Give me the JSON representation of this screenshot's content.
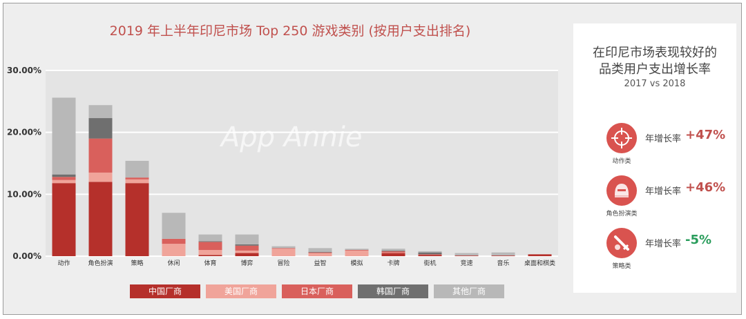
{
  "title": "2019 年上半年印尼市场 Top 250 游戏类别 (按用户支出排名)",
  "watermark": "App Annie",
  "colors": {
    "china": "#b5302b",
    "usa": "#f0a49a",
    "japan": "#d9605c",
    "korea": "#6f6f6f",
    "other": "#b8b8b8",
    "positive": "#c0504d",
    "negative": "#2a9d5c"
  },
  "chart_data": {
    "type": "bar",
    "stacked": true,
    "title": "2019 年上半年印尼市场 Top 250 游戏类别 (按用户支出排名)",
    "categories": [
      "动作",
      "角色扮演",
      "策略",
      "休闲",
      "体育",
      "博弈",
      "冒险",
      "益智",
      "模拟",
      "卡牌",
      "街机",
      "竞速",
      "音乐",
      "桌面和棋类"
    ],
    "y_ticks": [
      "0.00%",
      "10.00%",
      "20.00%",
      "30.00%"
    ],
    "ylim": [
      0,
      30
    ],
    "grid": true,
    "legend_position": "bottom",
    "series": [
      {
        "name": "中国厂商",
        "color_key": "china",
        "values": [
          11.8,
          12.0,
          11.8,
          0.0,
          0.2,
          0.5,
          0.0,
          0.0,
          0.0,
          0.5,
          0.2,
          0.1,
          0.1,
          0.3
        ]
      },
      {
        "name": "美国厂商",
        "color_key": "usa",
        "values": [
          0.5,
          1.5,
          0.6,
          2.0,
          0.8,
          0.4,
          1.2,
          0.5,
          0.9,
          0.1,
          0.0,
          0.0,
          0.0,
          0.0
        ]
      },
      {
        "name": "日本厂商",
        "color_key": "japan",
        "values": [
          0.5,
          5.5,
          0.3,
          0.8,
          1.3,
          0.8,
          0.1,
          0.1,
          0.1,
          0.2,
          0.1,
          0.0,
          0.0,
          0.0
        ]
      },
      {
        "name": "韩国厂商",
        "color_key": "korea",
        "values": [
          0.4,
          3.3,
          0.0,
          0.0,
          0.1,
          0.2,
          0.0,
          0.1,
          0.0,
          0.1,
          0.3,
          0.0,
          0.0,
          0.0
        ]
      },
      {
        "name": "其他厂商",
        "color_key": "other",
        "values": [
          12.4,
          2.1,
          2.7,
          4.2,
          1.1,
          1.6,
          0.3,
          0.6,
          0.2,
          0.3,
          0.2,
          0.4,
          0.5,
          0.0
        ]
      }
    ]
  },
  "side_panel": {
    "title_line1": "在印尼市场表现较好的",
    "title_line2": "品类用户支出增长率",
    "subtitle": "2017 vs 2018",
    "stats": [
      {
        "icon": "crosshair-icon",
        "category": "动作类",
        "label": "年增长率",
        "value": "+47%",
        "color_key": "positive"
      },
      {
        "icon": "helmet-icon",
        "category": "角色扮演类",
        "label": "年增长率",
        "value": "+46%",
        "color_key": "positive"
      },
      {
        "icon": "sword-icon",
        "category": "策略类",
        "label": "年增长率",
        "value": "-5%",
        "color_key": "negative"
      }
    ]
  }
}
